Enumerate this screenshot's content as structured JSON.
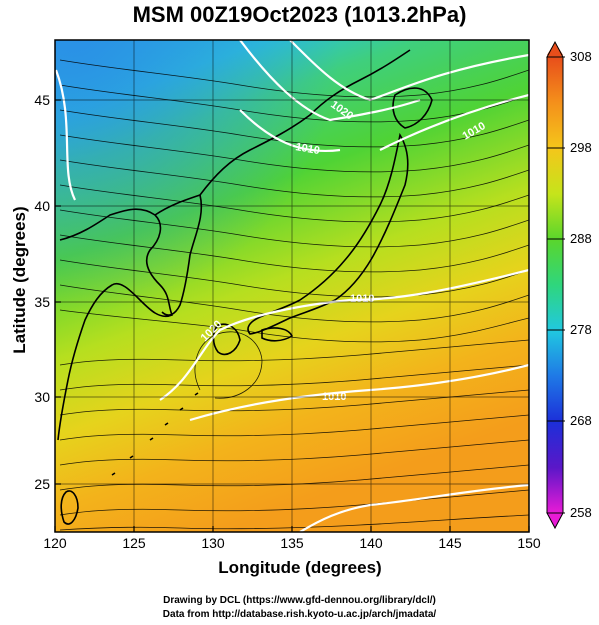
{
  "title": "MSM 00Z19Oct2023 (1013.2hPa)",
  "x_axis": {
    "label": "Longitude (degrees)",
    "ticks": [
      "120",
      "125",
      "130",
      "135",
      "140",
      "145",
      "150"
    ]
  },
  "y_axis": {
    "label": "Latitude  (degrees)",
    "ticks": [
      "25",
      "30",
      "35",
      "40",
      "45"
    ]
  },
  "colorbar": {
    "ticks": [
      "308",
      "298",
      "288",
      "278",
      "268",
      "258"
    ],
    "min": 258,
    "max": 308,
    "colors": [
      "#e81bd6",
      "#5a17c8",
      "#1c2fd9",
      "#1f79e6",
      "#21c8e0",
      "#2fd67d",
      "#5ad62c",
      "#c6e41b",
      "#f4c61b",
      "#f4901b",
      "#e84e1b"
    ]
  },
  "contour_labels": [
    "1020",
    "1010",
    "1010",
    "1020",
    "1010",
    "1010"
  ],
  "credits": {
    "line1": "Drawing by DCL (https://www.gfd-dennou.org/library/dcl/)",
    "line2": "Data from http://database.rish.kyoto-u.ac.jp/arch/jmadata/"
  },
  "map": {
    "lon_range": [
      120,
      150
    ],
    "lat_range": [
      22.6,
      47.8
    ],
    "field": "temperature (K) with wind streamlines and pressure contours"
  }
}
